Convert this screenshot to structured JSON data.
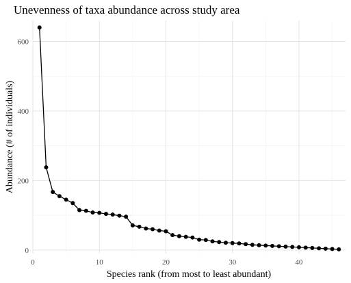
{
  "chart_data": {
    "type": "line",
    "title": "Unevenness of taxa abundance across study area",
    "xlabel": "Species rank (from most to least abundant)",
    "ylabel": "Abundance (# of individuals)",
    "xlim": [
      0,
      47
    ],
    "ylim": [
      -10,
      660
    ],
    "x_ticks": [
      0,
      10,
      20,
      30,
      40
    ],
    "y_ticks": [
      0,
      200,
      400,
      600
    ],
    "grid": true,
    "legend": "none",
    "series": [
      {
        "x": [
          1,
          2,
          3,
          4,
          5,
          6,
          7,
          8,
          9,
          10,
          11,
          12,
          13,
          14,
          15,
          16,
          17,
          18,
          19,
          20,
          21,
          22,
          23,
          24,
          25,
          26,
          27,
          28,
          29,
          30,
          31,
          32,
          33,
          34,
          35,
          36,
          37,
          38,
          39,
          40,
          41,
          42,
          43,
          44,
          45,
          46
        ],
        "y": [
          640,
          238,
          167,
          155,
          145,
          135,
          115,
          113,
          108,
          107,
          104,
          102,
          99,
          96,
          71,
          67,
          62,
          60,
          56,
          54,
          43,
          40,
          38,
          36,
          30,
          29,
          25,
          23,
          21,
          20,
          19,
          17,
          15,
          14,
          13,
          12,
          11,
          10,
          9,
          8,
          7,
          6,
          5,
          4,
          3,
          2
        ]
      }
    ],
    "colors": {
      "line": "#000000",
      "point": "#000000",
      "grid": "#e5e5e5",
      "tick_text": "#4d4d4d"
    }
  }
}
